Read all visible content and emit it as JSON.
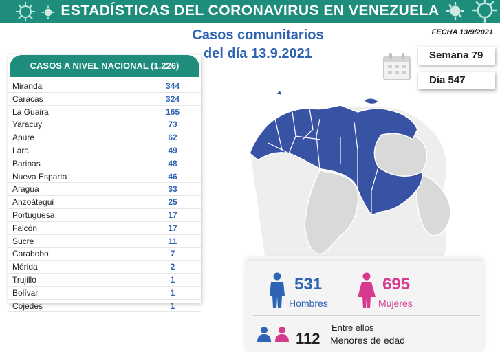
{
  "banner": {
    "title": "ESTADÍSTICAS DEL CORONAVIRUS EN VENEZUELA"
  },
  "subtitle": {
    "line1": "Casos comunitarios",
    "line2": "del día 13.9.2021"
  },
  "date": {
    "text": "FECHA 13/9/2021"
  },
  "period": {
    "week": "Semana 79",
    "day": "Día 547"
  },
  "table": {
    "header": "CASOS A NIVEL NACIONAL (1.226)",
    "rows": [
      {
        "state": "Miranda",
        "cases": "344"
      },
      {
        "state": "Caracas",
        "cases": "324"
      },
      {
        "state": "La Guaira",
        "cases": "165"
      },
      {
        "state": "Yaracuy",
        "cases": "73"
      },
      {
        "state": "Apure",
        "cases": "62"
      },
      {
        "state": "Lara",
        "cases": "49"
      },
      {
        "state": "Barinas",
        "cases": "48"
      },
      {
        "state": "Nueva Esparta",
        "cases": "46"
      },
      {
        "state": "Aragua",
        "cases": "33"
      },
      {
        "state": "Anzoátegui",
        "cases": "25"
      },
      {
        "state": "Portuguesa",
        "cases": "17"
      },
      {
        "state": "Falcón",
        "cases": "17"
      },
      {
        "state": "Sucre",
        "cases": "11"
      },
      {
        "state": "Carabobo",
        "cases": "7"
      },
      {
        "state": "Mérida",
        "cases": "2"
      },
      {
        "state": "Trujillo",
        "cases": "1"
      },
      {
        "state": "Bolívar",
        "cases": "1"
      },
      {
        "state": "Cojedes",
        "cases": "1"
      }
    ]
  },
  "stats": {
    "men_count": "531",
    "men_label": "Hombres",
    "women_count": "695",
    "women_label": "Mujeres",
    "minors_intro": "Entre ellos",
    "minors_count": "112",
    "minors_label": "Menores de edad"
  },
  "colors": {
    "teal": "#1e8d7c",
    "blue": "#2e64b4",
    "pink": "#d63a8f",
    "map_affected": "#3953a4",
    "map_other": "#d9d9d9"
  },
  "icons": [
    "virus-icon",
    "calendar-icon",
    "man-icon",
    "woman-icon",
    "children-icon"
  ]
}
